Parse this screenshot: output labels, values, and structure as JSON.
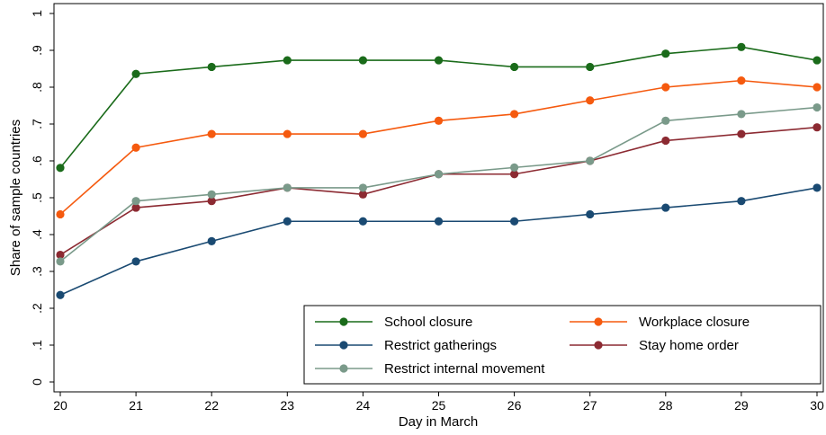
{
  "chart_data": {
    "type": "line",
    "xlabel": "Day in March",
    "ylabel": "Share of sample countries",
    "x": [
      20,
      21,
      22,
      23,
      24,
      25,
      26,
      27,
      28,
      29,
      30
    ],
    "xlim": [
      20,
      30
    ],
    "ylim": [
      0,
      1
    ],
    "yticks": [
      0,
      0.1,
      0.2,
      0.3,
      0.4,
      0.5,
      0.6,
      0.7,
      0.8,
      0.9,
      1
    ],
    "ytick_labels": [
      "0",
      ".1",
      ".2",
      ".3",
      ".4",
      ".5",
      ".6",
      ".7",
      ".8",
      ".9",
      "1"
    ],
    "xticks": [
      20,
      21,
      22,
      23,
      24,
      25,
      26,
      27,
      28,
      29,
      30
    ],
    "xtick_labels": [
      "20",
      "21",
      "22",
      "23",
      "24",
      "25",
      "26",
      "27",
      "28",
      "29",
      "30"
    ],
    "grid": false,
    "legend_position": "bottom-right",
    "series": [
      {
        "name": "School closure",
        "color": "#1a6b1a",
        "values": [
          0.581,
          0.836,
          0.855,
          0.873,
          0.873,
          0.873,
          0.855,
          0.855,
          0.891,
          0.909,
          0.873
        ]
      },
      {
        "name": "Workplace closure",
        "color": "#f55a0f",
        "values": [
          0.455,
          0.636,
          0.673,
          0.673,
          0.673,
          0.709,
          0.727,
          0.764,
          0.8,
          0.818,
          0.8
        ]
      },
      {
        "name": "Restrict gatherings",
        "color": "#1a4a72",
        "values": [
          0.236,
          0.327,
          0.382,
          0.436,
          0.436,
          0.436,
          0.436,
          0.455,
          0.473,
          0.491,
          0.527
        ]
      },
      {
        "name": "Stay home order",
        "color": "#8c2a32",
        "values": [
          0.345,
          0.473,
          0.491,
          0.527,
          0.509,
          0.564,
          0.564,
          0.6,
          0.655,
          0.673,
          0.691
        ]
      },
      {
        "name": "Restrict internal movement",
        "color": "#7a9a8a",
        "values": [
          0.327,
          0.491,
          0.509,
          0.527,
          0.527,
          0.564,
          0.582,
          0.6,
          0.709,
          0.727,
          0.745
        ]
      }
    ]
  }
}
